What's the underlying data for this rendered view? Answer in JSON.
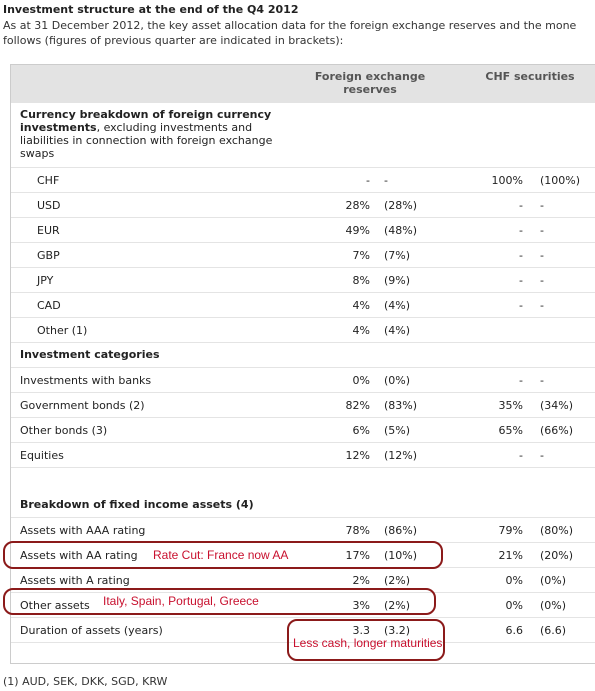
{
  "header": {
    "title": "Investment structure at the end of the Q4 2012",
    "intro_lines": [
      "As at 31 December 2012, the key asset allocation data for the foreign exchange reserves and the mone",
      "follows (figures of previous quarter are indicated in brackets):"
    ]
  },
  "table": {
    "columns": [
      "Foreign exchange reserves",
      "CHF securities"
    ],
    "sections": [
      {
        "title_bold": "Currency breakdown of foreign currency investments",
        "title_rest": ", excluding investments and liabilities in connection with foreign exchange swaps",
        "rows": [
          {
            "label": "CHF",
            "fx": "-",
            "fx_prev": "-",
            "chf": "100%",
            "chf_prev": "(100%)"
          },
          {
            "label": "USD",
            "fx": "28%",
            "fx_prev": "(28%)",
            "chf": "-",
            "chf_prev": "-"
          },
          {
            "label": "EUR",
            "fx": "49%",
            "fx_prev": "(48%)",
            "chf": "-",
            "chf_prev": "-"
          },
          {
            "label": "GBP",
            "fx": "7%",
            "fx_prev": "(7%)",
            "chf": "-",
            "chf_prev": "-"
          },
          {
            "label": "JPY",
            "fx": "8%",
            "fx_prev": "(9%)",
            "chf": "-",
            "chf_prev": "-"
          },
          {
            "label": "CAD",
            "fx": "4%",
            "fx_prev": "(4%)",
            "chf": "-",
            "chf_prev": "-"
          },
          {
            "label": "Other (1)",
            "fx": "4%",
            "fx_prev": "(4%)"
          }
        ]
      },
      {
        "title_bold": "Investment categories",
        "rows": [
          {
            "label": "Investments with banks",
            "fx": "0%",
            "fx_prev": "(0%)",
            "chf": "-",
            "chf_prev": "-"
          },
          {
            "label": "Government bonds (2)",
            "fx": "82%",
            "fx_prev": "(83%)",
            "chf": "35%",
            "chf_prev": "(34%)"
          },
          {
            "label": "Other bonds (3)",
            "fx": "6%",
            "fx_prev": "(5%)",
            "chf": "65%",
            "chf_prev": "(66%)"
          },
          {
            "label": "Equities",
            "fx": "12%",
            "fx_prev": "(12%)",
            "chf": "-",
            "chf_prev": "-"
          }
        ]
      },
      {
        "title_bold": "Breakdown of fixed income assets (4)",
        "rows": [
          {
            "label": "Assets with AAA rating",
            "fx": "78%",
            "fx_prev": "(86%)",
            "chf": "79%",
            "chf_prev": "(80%)"
          },
          {
            "label": "Assets with AA rating",
            "fx": "17%",
            "fx_prev": "(10%)",
            "chf": "21%",
            "chf_prev": "(20%)"
          },
          {
            "label": "Assets with A rating",
            "fx": "2%",
            "fx_prev": "(2%)",
            "chf": "0%",
            "chf_prev": "(0%)"
          },
          {
            "label": "Other assets",
            "fx": "3%",
            "fx_prev": "(2%)",
            "chf": "0%",
            "chf_prev": "(0%)"
          },
          {
            "label": "Duration of assets (years)",
            "fx": "3.3",
            "fx_prev": "(3.2)",
            "chf": "6.6",
            "chf_prev": "(6.6)"
          }
        ]
      }
    ]
  },
  "annotations": [
    "Rate Cut: France now AA",
    "Italy, Spain, Portugal, Greece",
    "Less cash, longer maturities"
  ],
  "footnote": "(1) AUD, SEK, DKK, SGD, KRW"
}
